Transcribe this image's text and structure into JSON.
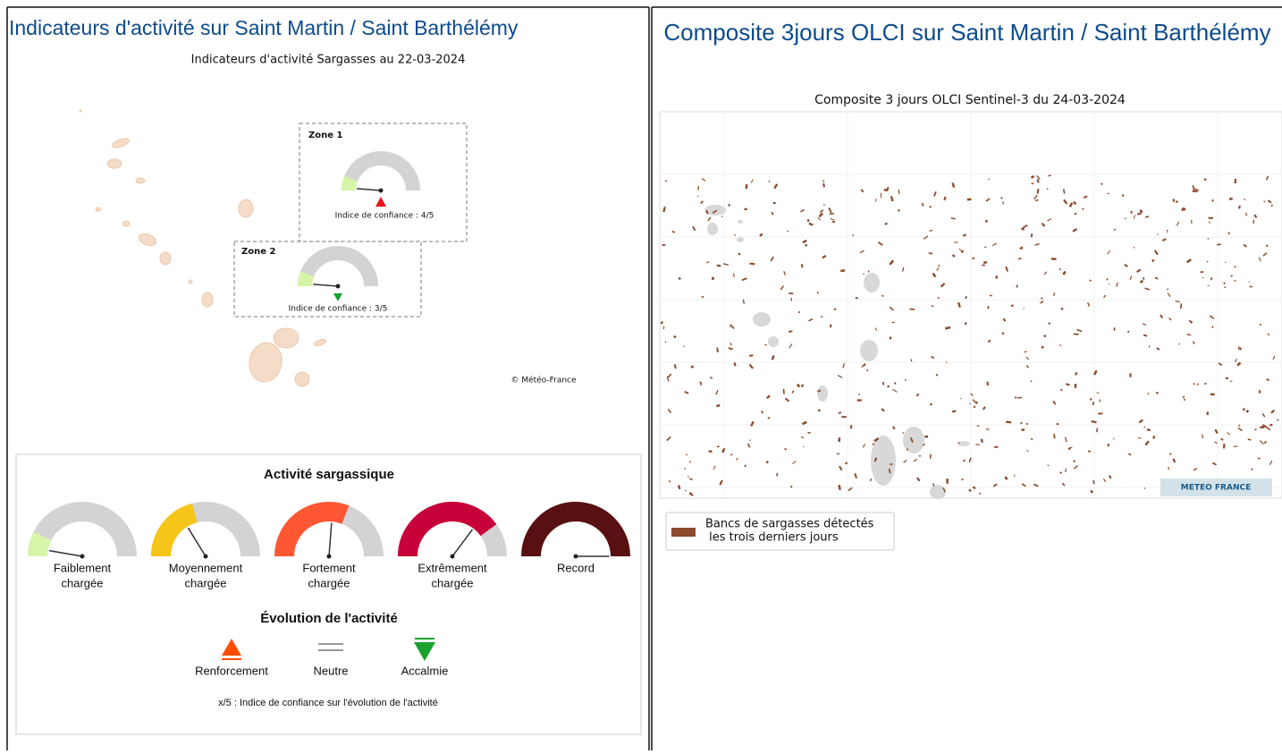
{
  "left": {
    "title": "Indicateurs d'activité sur Saint Martin / Saint Barthélémy",
    "subtitle": "Indicateurs d'activité Sargasses au 22-03-2024",
    "zones": [
      {
        "label": "Zone 1",
        "confidence": "Indice de confiance : 4/5"
      },
      {
        "label": "Zone 2",
        "confidence": "Indice de confiance : 3/5"
      }
    ],
    "credit": "© Météo-France",
    "legend": {
      "title": "Activité sargassique",
      "levels": [
        [
          "Faiblement",
          "chargée"
        ],
        [
          "Moyennement",
          "chargée"
        ],
        [
          "Fortement",
          "chargée"
        ],
        [
          "Extrêmement",
          "chargée"
        ],
        [
          "Record"
        ]
      ],
      "evolution_title": "Évolution de l'activité",
      "evolutions": [
        "Renforcement",
        "Neutre",
        "Accalmie"
      ],
      "note": "x/5 : Indice de confiance sur l'évolution de l'activité"
    }
  },
  "right": {
    "title": "Composite 3jours OLCI sur Saint Martin / Saint Barthélémy",
    "subtitle": "Composite 3 jours OLCI Sentinel-3 du 24-03-2024",
    "logo": "METEO FRANCE",
    "legend": [
      "Bancs de sargasses détectés",
      " les trois derniers jours"
    ]
  }
}
